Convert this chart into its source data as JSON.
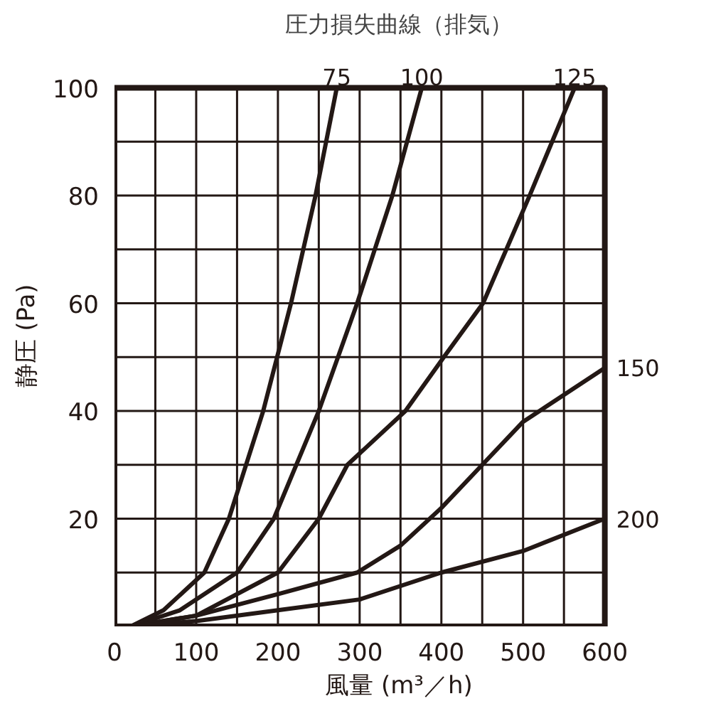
{
  "chart_data": {
    "type": "line",
    "title": "圧力損失曲線（排気）",
    "xlabel": "風量 (m³／h)",
    "ylabel": "静圧 (Pa)",
    "xlim": [
      0,
      600
    ],
    "ylim": [
      0,
      100
    ],
    "xticks": [
      0,
      {
        "value": 50,
        "label": null
      },
      100,
      {
        "value": 150,
        "label": null
      },
      200,
      {
        "value": 250,
        "label": null
      },
      300,
      {
        "value": 350,
        "label": null
      },
      400,
      {
        "value": 450,
        "label": null
      },
      500,
      {
        "value": 550,
        "label": null
      },
      600
    ],
    "yticks": [
      {
        "value": 0,
        "label": null
      },
      {
        "value": 10,
        "label": null
      },
      20,
      {
        "value": 30,
        "label": null
      },
      40,
      {
        "value": 50,
        "label": null
      },
      60,
      {
        "value": 70,
        "label": null
      },
      80,
      {
        "value": 90,
        "label": null
      },
      100
    ],
    "grid": true,
    "marker": "none",
    "line_style": "solid",
    "series": [
      {
        "name": "75",
        "color": "#231815",
        "x": [
          20,
          60,
          110,
          140,
          182,
          216,
          246,
          272
        ],
        "values": [
          0,
          3,
          10,
          20,
          40,
          60,
          80,
          100
        ]
      },
      {
        "name": "100",
        "color": "#231815",
        "x": [
          20,
          80,
          150,
          195,
          250,
          297,
          340,
          376
        ],
        "values": [
          0,
          3,
          10,
          20,
          40,
          60,
          80,
          100
        ]
      },
      {
        "name": "125",
        "color": "#231815",
        "x": [
          20,
          100,
          200,
          250,
          285,
          356,
          403,
          451,
          508,
          563
        ],
        "values": [
          0,
          2,
          10,
          20,
          30,
          40,
          50,
          60,
          80,
          100
        ]
      },
      {
        "name": "150",
        "color": "#231815",
        "x": [
          20,
          100,
          200,
          297,
          350,
          400,
          450,
          500,
          600
        ],
        "values": [
          0,
          2,
          6,
          10,
          15,
          22,
          30,
          38,
          48
        ]
      },
      {
        "name": "200",
        "color": "#231815",
        "x": [
          20,
          100,
          200,
          300,
          400,
          500,
          600
        ],
        "values": [
          0,
          1,
          3,
          5,
          10,
          14,
          20
        ]
      }
    ]
  }
}
